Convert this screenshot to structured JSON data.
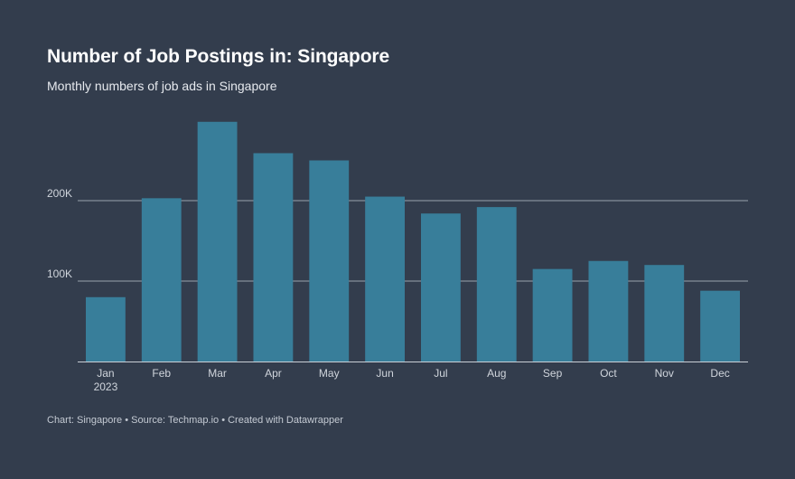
{
  "title": "Number of Job Postings in: Singapore",
  "subtitle": "Monthly numbers of job ads in Singapore",
  "footer": "Chart: Singapore • Source: Techmap.io • Created with Datawrapper",
  "colors": {
    "background": "#333d4d",
    "bar": "#387e9a",
    "grid": "#9aa3ad",
    "text": "#d0d5dc"
  },
  "chart_data": {
    "type": "bar",
    "categories": [
      "Jan",
      "Feb",
      "Mar",
      "Apr",
      "May",
      "Jun",
      "Jul",
      "Aug",
      "Sep",
      "Oct",
      "Nov",
      "Dec"
    ],
    "category_sublabels": [
      "2023",
      "",
      "",
      "",
      "",
      "",
      "",
      "",
      "",
      "",
      "",
      ""
    ],
    "values": [
      80000,
      203000,
      298000,
      259000,
      250000,
      205000,
      184000,
      192000,
      115000,
      125000,
      120000,
      88000
    ],
    "ylim": [
      0,
      300000
    ],
    "yticks": [
      100000,
      200000
    ],
    "ytick_labels": [
      "100K",
      "200K"
    ],
    "grid": true,
    "xlabel": "",
    "ylabel": ""
  }
}
